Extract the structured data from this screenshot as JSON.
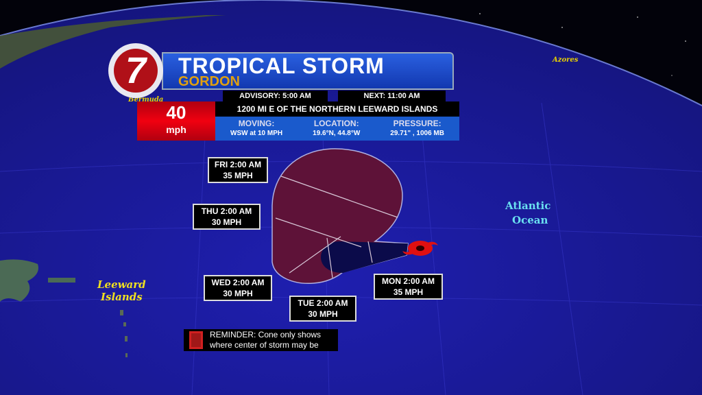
{
  "header": {
    "logo": "7",
    "title": "TROPICAL STORM",
    "storm_name": "GORDON",
    "advisory": "ADVISORY: 5:00 AM",
    "next": "NEXT: 11:00 AM",
    "wind_speed": "40",
    "wind_unit": "mph",
    "distance": "1200 MI E OF THE NORTHERN LEEWARD ISLANDS",
    "moving_label": "MOVING:",
    "moving_value": "WSW at 10 MPH",
    "location_label": "LOCATION:",
    "location_value": "19.6°N, 44.8°W",
    "pressure_label": "PRESSURE:",
    "pressure_value": "29.71\" , 1006 MB"
  },
  "forecast_points": [
    {
      "time": "MON 2:00 AM",
      "wind": "35 MPH"
    },
    {
      "time": "TUE 2:00 AM",
      "wind": "30 MPH"
    },
    {
      "time": "WED 2:00 AM",
      "wind": "30 MPH"
    },
    {
      "time": "THU 2:00 AM",
      "wind": "30 MPH"
    },
    {
      "time": "FRI 2:00 AM",
      "wind": "35 MPH"
    }
  ],
  "map_labels": {
    "bermuda": "Bermuda",
    "azores": "Azores",
    "leeward_1": "Leeward",
    "leeward_2": "Islands",
    "atlantic_1": "Atlantic",
    "atlantic_2": "Ocean"
  },
  "reminder": {
    "line1": "REMINDER: Cone only shows",
    "line2": "where center of storm may be"
  },
  "colors": {
    "ocean": "#1c1ca0",
    "cone": "#5e1238",
    "tail": "#0b0b4a",
    "storm_icon": "#e01010",
    "banner": "#1a4fd0",
    "wind_box": "#d00010",
    "name": "#e0a010"
  }
}
